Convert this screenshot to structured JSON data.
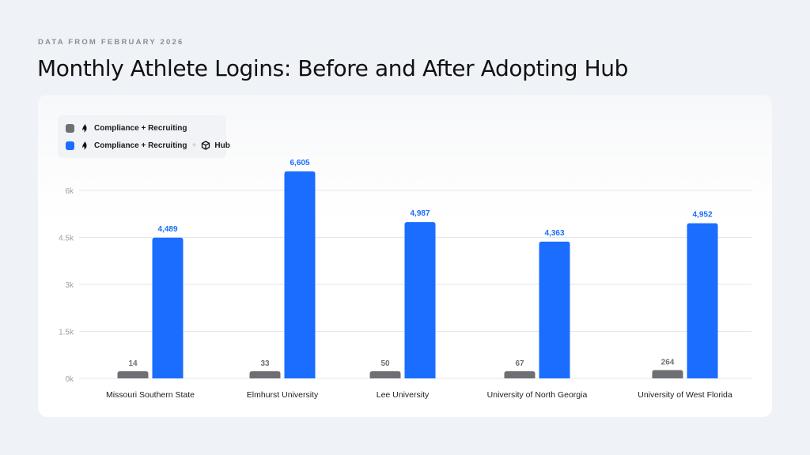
{
  "header": {
    "eyebrow": "DATA FROM FEBRUARY 2026",
    "title": "Monthly Athlete Logins: Before and After Adopting Hub"
  },
  "legend": {
    "series1_label": "Compliance + Recruiting",
    "series2_label": "Compliance + Recruiting",
    "series2_plus": "+",
    "series2_suffix": "Hub",
    "brand_icon": "flame-logo-icon",
    "hub_icon": "cube-icon"
  },
  "colors": {
    "before": "#6e6f72",
    "after": "#1a6dff",
    "after_label": "#1a6dff",
    "before_label": "#6e6f72"
  },
  "chart_data": {
    "type": "bar",
    "categories": [
      "Missouri Southern State",
      "Elmhurst University",
      "Lee University",
      "University of North Georgia",
      "University of West Florida"
    ],
    "series": [
      {
        "name": "Compliance + Recruiting",
        "values": [
          14,
          33,
          50,
          67,
          264
        ],
        "labels": [
          "14",
          "33",
          "50",
          "67",
          "264"
        ]
      },
      {
        "name": "Compliance + Recruiting + Hub",
        "values": [
          4489,
          6605,
          4987,
          4363,
          4952
        ],
        "labels": [
          "4,489",
          "6,605",
          "4,987",
          "4,363",
          "4,952"
        ]
      }
    ],
    "yticks": [
      0,
      1500,
      3000,
      4500,
      6000
    ],
    "ytick_labels": [
      "0k",
      "1.5k",
      "3k",
      "4.5k",
      "6k"
    ],
    "ylim": [
      0,
      6000
    ],
    "grid": true,
    "legend_position": "top-left",
    "title": "Monthly Athlete Logins: Before and After Adopting Hub",
    "xlabel": "",
    "ylabel": ""
  }
}
